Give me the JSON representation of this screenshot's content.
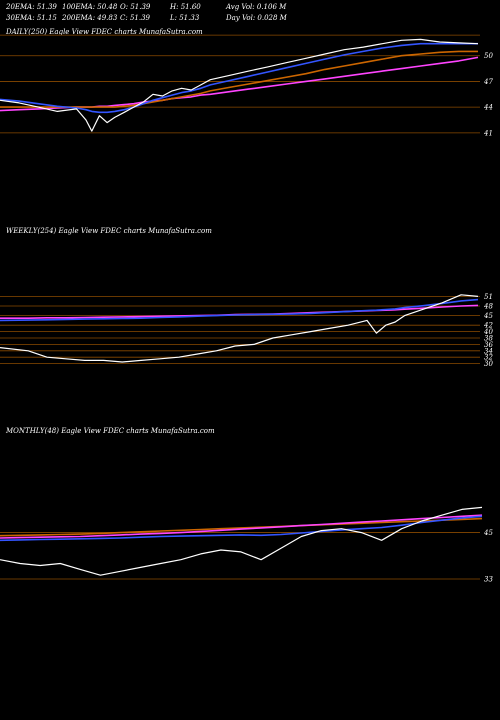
{
  "header": {
    "row1": [
      {
        "label": "20EMA: 51.39"
      },
      {
        "label": "100EMA: 50.48"
      },
      {
        "label": "O: 51.39"
      },
      {
        "label": "H: 51.60"
      },
      {
        "label": "Avg Vol: 0.106  M"
      }
    ],
    "row2": [
      {
        "label": "30EMA: 51.15"
      },
      {
        "label": "200EMA: 49.83"
      },
      {
        "label": "C: 51.39"
      },
      {
        "label": "L: 51.33"
      },
      {
        "label": "Day Vol: 0.028  M"
      }
    ]
  },
  "colors": {
    "background": "#000000",
    "price": "#ffffff",
    "ema_blue": "#3355ff",
    "ema_magenta": "#ff44ff",
    "ema_orange": "#cc6600",
    "ema_gray": "#bbbbbb",
    "hline": "#8a4a00"
  },
  "chart_data": [
    {
      "type": "line",
      "title": "DAILY(250) Eagle  View  FDEC charts MunafaSutra.com",
      "ylim": [
        39,
        53
      ],
      "y_ticks": [
        50,
        47,
        44,
        41
      ],
      "hlines": [
        52.4,
        50,
        47,
        44,
        41
      ],
      "x": [
        0,
        10,
        20,
        30,
        40,
        45,
        48,
        52,
        56,
        60,
        65,
        70,
        75,
        80,
        85,
        90,
        95,
        100,
        105,
        110,
        120,
        130,
        140,
        150,
        160,
        170,
        180,
        190,
        200,
        210,
        220,
        230,
        240,
        250
      ],
      "series": [
        {
          "values": [
            44.8,
            44.5,
            44.0,
            43.5,
            43.8,
            42.5,
            41.2,
            43.0,
            42.2,
            42.8,
            43.4,
            44.0,
            44.6,
            45.5,
            45.3,
            45.9,
            46.2,
            46.0,
            46.6,
            47.2,
            47.7,
            48.2,
            48.7,
            49.2,
            49.7,
            50.2,
            50.7,
            51.0,
            51.4,
            51.8,
            51.9,
            51.6,
            51.5,
            51.4
          ],
          "color": "#ffffff"
        },
        {
          "values": [
            44.9,
            44.7,
            44.4,
            44.1,
            43.9,
            43.7,
            43.5,
            43.4,
            43.4,
            43.5,
            43.7,
            44.0,
            44.4,
            44.8,
            45.1,
            45.4,
            45.7,
            45.9,
            46.2,
            46.6,
            47.1,
            47.6,
            48.1,
            48.6,
            49.1,
            49.6,
            50.1,
            50.5,
            50.9,
            51.2,
            51.4,
            51.4,
            51.4,
            51.4
          ],
          "color": "#3355ff"
        },
        {
          "values": [
            44.0,
            44.0,
            44.0,
            44.0,
            44.0,
            44.0,
            44.0,
            44.0,
            44.0,
            44.0,
            44.1,
            44.2,
            44.4,
            44.6,
            44.8,
            45.0,
            45.2,
            45.4,
            45.6,
            45.9,
            46.3,
            46.7,
            47.1,
            47.5,
            47.9,
            48.4,
            48.8,
            49.2,
            49.6,
            50.0,
            50.2,
            50.4,
            50.5,
            50.5
          ],
          "color": "#cc6600"
        },
        {
          "values": [
            43.6,
            43.7,
            43.8,
            43.9,
            44.0,
            44.0,
            44.0,
            44.1,
            44.1,
            44.2,
            44.3,
            44.4,
            44.6,
            44.7,
            44.8,
            45.0,
            45.1,
            45.2,
            45.4,
            45.5,
            45.8,
            46.1,
            46.4,
            46.7,
            47.0,
            47.3,
            47.6,
            47.9,
            48.2,
            48.5,
            48.8,
            49.1,
            49.4,
            49.8
          ],
          "color": "#ff44ff"
        }
      ]
    },
    {
      "type": "line",
      "title": "WEEKLY(254) Eagle  View  FDEC charts MunafaSutra.com",
      "ylim": [
        28,
        53
      ],
      "y_ticks": [
        51,
        48,
        45,
        42,
        40,
        38,
        36,
        34,
        32,
        30
      ],
      "hlines": [
        51,
        48,
        45,
        42,
        40,
        38,
        36,
        34,
        32,
        30
      ],
      "x": [
        0,
        15,
        25,
        35,
        45,
        55,
        65,
        75,
        85,
        95,
        105,
        115,
        125,
        135,
        145,
        155,
        165,
        175,
        185,
        195,
        200,
        205,
        210,
        215,
        225,
        235,
        245,
        254
      ],
      "series": [
        {
          "values": [
            35.0,
            34.0,
            32.0,
            31.5,
            31.0,
            31.0,
            30.5,
            31.0,
            31.5,
            32.0,
            33.0,
            34.0,
            35.5,
            36.0,
            38.0,
            39.0,
            40.0,
            41.0,
            42.0,
            43.5,
            39.5,
            42.0,
            43.0,
            45.0,
            47.0,
            49.0,
            51.5,
            51.0
          ],
          "color": "#ffffff"
        },
        {
          "values": [
            43.5,
            43.6,
            43.7,
            43.8,
            43.9,
            44.0,
            44.1,
            44.2,
            44.4,
            44.6,
            44.8,
            45.0,
            45.2,
            45.3,
            45.4,
            45.5,
            45.7,
            46.0,
            46.3,
            46.6,
            46.7,
            46.9,
            47.1,
            47.5,
            48.1,
            48.8,
            49.6,
            50.0
          ],
          "color": "#3355ff"
        },
        {
          "values": [
            44.2,
            44.2,
            44.3,
            44.3,
            44.4,
            44.5,
            44.6,
            44.7,
            44.8,
            44.9,
            45.0,
            45.1,
            45.3,
            45.4,
            45.5,
            45.7,
            45.9,
            46.1,
            46.3,
            46.5,
            46.6,
            46.7,
            46.8,
            47.0,
            47.3,
            47.7,
            48.0,
            48.2
          ],
          "color": "#ff44ff"
        }
      ]
    },
    {
      "type": "line",
      "title": "MONTHLY(48) Eagle  View  FDEC charts MunafaSutra.com",
      "ylim": [
        25,
        56
      ],
      "y_ticks": [
        45,
        33
      ],
      "hlines": [
        45,
        33
      ],
      "x": [
        0,
        2,
        4,
        6,
        8,
        10,
        12,
        14,
        16,
        18,
        20,
        22,
        24,
        26,
        28,
        30,
        32,
        34,
        36,
        38,
        40,
        42,
        44,
        46,
        48
      ],
      "series": [
        {
          "values": [
            38.0,
            37.0,
            36.5,
            37.0,
            35.5,
            34.0,
            35.0,
            36.0,
            37.0,
            38.0,
            39.5,
            40.5,
            40.0,
            38.0,
            41.0,
            44.0,
            45.5,
            46.0,
            45.0,
            43.0,
            46.0,
            48.0,
            49.5,
            51.0,
            51.5
          ],
          "color": "#ffffff"
        },
        {
          "values": [
            43.0,
            43.1,
            43.2,
            43.3,
            43.4,
            43.5,
            43.6,
            43.8,
            44.0,
            44.1,
            44.2,
            44.3,
            44.4,
            44.3,
            44.5,
            44.9,
            45.3,
            45.7,
            46.0,
            46.3,
            46.9,
            47.6,
            48.2,
            48.8,
            49.2
          ],
          "color": "#3355ff"
        },
        {
          "values": [
            43.6,
            43.7,
            43.8,
            43.9,
            44.0,
            44.2,
            44.4,
            44.6,
            44.8,
            45.0,
            45.3,
            45.6,
            45.9,
            46.2,
            46.5,
            46.8,
            47.1,
            47.4,
            47.7,
            48.0,
            48.3,
            48.6,
            48.9,
            49.2,
            49.5
          ],
          "color": "#ff44ff"
        },
        {
          "values": [
            44.2,
            44.3,
            44.4,
            44.5,
            44.6,
            44.8,
            45.0,
            45.2,
            45.4,
            45.6,
            45.8,
            46.0,
            46.2,
            46.4,
            46.6,
            46.8,
            47.0,
            47.2,
            47.4,
            47.6,
            47.8,
            48.0,
            48.2,
            48.4,
            48.6
          ],
          "color": "#cc6600"
        }
      ]
    }
  ]
}
